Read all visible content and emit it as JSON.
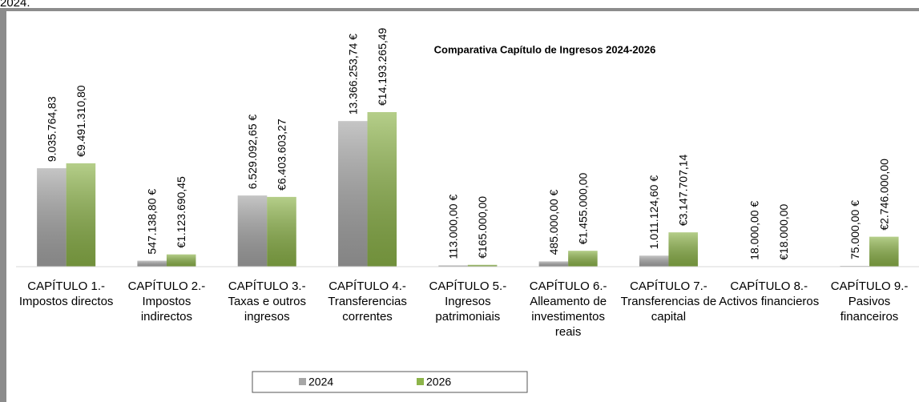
{
  "top_text": "2024.",
  "chart_data": {
    "type": "bar",
    "title": "Comparativa Capítulo de Ingresos 2024-2026",
    "categories": [
      "CAPÍTULO 1.- Impostos directos",
      "CAPÍTULO 2.- Impostos indirectos",
      "CAPÍTULO 3.- Taxas e outros ingresos",
      "CAPÍTULO 4.- Transferencias correntes",
      "CAPÍTULO 5.- Ingresos patrimoniais",
      "CAPÍTULO 6.- Alleamento de investimentos reais",
      "CAPÍTULO 7.- Transferencias de capital",
      "CAPÍTULO 8.- Activos financieros",
      "CAPÍTULO 9.- Pasivos financeiros"
    ],
    "series": [
      {
        "name": "2024",
        "color": "#a6a6a6",
        "values": [
          9035764.83,
          547138.8,
          6529092.65,
          13366253.74,
          113000.0,
          485000.0,
          1011124.6,
          18000.0,
          75000.0
        ],
        "value_labels": [
          "9.035.764,83",
          "547.138,80 €",
          "6.529.092,65 €",
          "13.366.253,74 €",
          "113.000,00 €",
          "485.000,00 €",
          "1.011.124,60 €",
          "18.000,00 €",
          "75.000,00 €"
        ]
      },
      {
        "name": "2026",
        "color": "#8db44a",
        "values": [
          9491310.8,
          1123690.45,
          6403603.27,
          14193265.49,
          165000.0,
          1455000.0,
          3147707.14,
          18000.0,
          2746000.0
        ],
        "value_labels": [
          "€9.491.310,80",
          "€1.123.690,45",
          "€6.403.603,27",
          "€14.193.265,49",
          "€165.000,00",
          "€1.455.000,00",
          "€3.147.707,14",
          "€18.000,00",
          "€2.746.000,00"
        ]
      }
    ],
    "legend": "bottom"
  }
}
